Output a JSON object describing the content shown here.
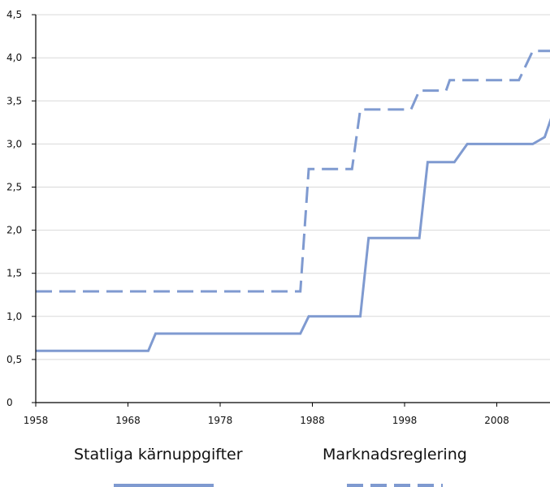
{
  "chart_data": {
    "type": "line",
    "title": "",
    "xlabel": "",
    "ylabel": "",
    "xlim": [
      1958,
      2014
    ],
    "ylim": [
      0,
      4.5
    ],
    "x_ticks": [
      1958,
      1968,
      1978,
      1988,
      1998,
      2008
    ],
    "x_tick_labels": [
      "1958",
      "1968",
      "1978",
      "1988",
      "1998",
      "2008"
    ],
    "y_ticks": [
      0,
      0.5,
      1.0,
      1.5,
      2.0,
      2.5,
      3.0,
      3.5,
      4.0,
      4.5
    ],
    "y_tick_labels": [
      "0",
      "0,5",
      "1,0",
      "1,5",
      "2,0",
      "2,5",
      "3,0",
      "3,5",
      "4,0",
      "4,5"
    ],
    "grid": "horizontal",
    "legend_position": "bottom",
    "series": [
      {
        "name": "Statliga kärnuppgifter",
        "style": "solid",
        "color": "#7f9ad0",
        "points": [
          [
            1958,
            0.6
          ],
          [
            1970.2,
            0.6
          ],
          [
            1971,
            0.8
          ],
          [
            1986.7,
            0.8
          ],
          [
            1987.6,
            1.0
          ],
          [
            1993.2,
            1.0
          ],
          [
            1994.1,
            1.91
          ],
          [
            1999.6,
            1.91
          ],
          [
            2000.5,
            2.79
          ],
          [
            2003.4,
            2.79
          ],
          [
            2004.8,
            3.0
          ],
          [
            2011.9,
            3.0
          ],
          [
            2013.2,
            3.08
          ],
          [
            2013.9,
            3.3
          ],
          [
            2016.6,
            3.3
          ],
          [
            2017.5,
            3.37
          ]
        ]
      },
      {
        "name": "Marknadsreglering",
        "style": "dashed",
        "color": "#7f9ad0",
        "points": [
          [
            1958,
            1.29
          ],
          [
            1986.7,
            1.29
          ],
          [
            1987.6,
            2.71
          ],
          [
            1992.3,
            2.71
          ],
          [
            1993.2,
            3.4
          ],
          [
            1998.7,
            3.4
          ],
          [
            1999.6,
            3.62
          ],
          [
            2002.5,
            3.62
          ],
          [
            2002.9,
            3.74
          ],
          [
            2010.4,
            3.74
          ],
          [
            2011.9,
            4.08
          ],
          [
            2017.5,
            4.08
          ]
        ]
      }
    ]
  },
  "colors": {
    "grid": "#d9d9d9",
    "axis": "#000000",
    "series": "#7f9ad0"
  }
}
